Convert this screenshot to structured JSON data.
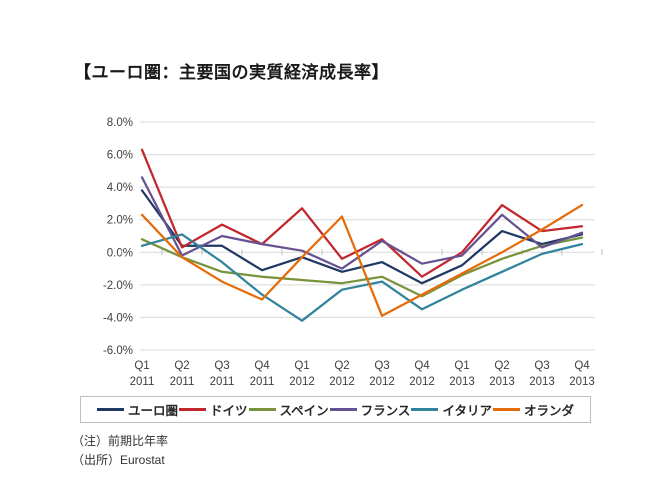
{
  "page": {
    "title": "【ユーロ圏：主要国の実質経済成長率】"
  },
  "notes": {
    "note1": "（注）前期比年率",
    "note2": "（出所）Eurostat"
  },
  "chart_data": {
    "type": "line",
    "title": "【ユーロ圏：主要国の実質経済成長率】",
    "xlabel": "",
    "ylabel": "",
    "ylim": [
      -6,
      8
    ],
    "grid": true,
    "legend_position": "bottom",
    "y_ticks": [
      {
        "label": "8.0%",
        "value": 8
      },
      {
        "label": "6.0%",
        "value": 6
      },
      {
        "label": "4.0%",
        "value": 4
      },
      {
        "label": "2.0%",
        "value": 2
      },
      {
        "label": "0.0%",
        "value": 0
      },
      {
        "label": "-2.0%",
        "value": -2
      },
      {
        "label": "-4.0%",
        "value": -4
      },
      {
        "label": "-6.0%",
        "value": -6
      }
    ],
    "categories": [
      "Q1 2011",
      "Q2 2011",
      "Q3 2011",
      "Q4 2011",
      "Q1 2012",
      "Q2 2012",
      "Q3 2012",
      "Q4 2012",
      "Q1 2013",
      "Q2 2013",
      "Q3 2013",
      "Q4 2013"
    ],
    "series": [
      {
        "key": "euro-area",
        "name": "ユーロ圏",
        "color": "#1F3864",
        "values": [
          3.8,
          0.4,
          0.4,
          -1.1,
          -0.3,
          -1.2,
          -0.6,
          -1.9,
          -0.8,
          1.3,
          0.5,
          1.1
        ]
      },
      {
        "key": "germany",
        "name": "ドイツ",
        "color": "#C3272E",
        "values": [
          6.3,
          0.3,
          1.7,
          0.5,
          2.7,
          -0.4,
          0.8,
          -1.5,
          0.0,
          2.9,
          1.3,
          1.6
        ]
      },
      {
        "key": "spain",
        "name": "スペイン",
        "color": "#77933C",
        "values": [
          0.8,
          -0.3,
          -1.2,
          -1.5,
          -1.7,
          -1.9,
          -1.5,
          -2.7,
          -1.4,
          -0.4,
          0.4,
          0.9
        ]
      },
      {
        "key": "france",
        "name": "フランス",
        "color": "#665191",
        "values": [
          4.6,
          -0.2,
          1.0,
          0.5,
          0.1,
          -1.0,
          0.7,
          -0.7,
          -0.2,
          2.3,
          0.3,
          1.2
        ]
      },
      {
        "key": "italy",
        "name": "イタリア",
        "color": "#31849B",
        "values": [
          0.4,
          1.1,
          -0.6,
          -2.6,
          -4.2,
          -2.3,
          -1.8,
          -3.5,
          -2.3,
          -1.2,
          -0.1,
          0.5
        ]
      },
      {
        "key": "netherlands",
        "name": "オランダ",
        "color": "#E46C0A",
        "values": [
          2.3,
          -0.3,
          -1.8,
          -2.9,
          -0.3,
          2.2,
          -3.9,
          -2.6,
          -1.3,
          0.0,
          1.4,
          2.9
        ]
      }
    ]
  }
}
